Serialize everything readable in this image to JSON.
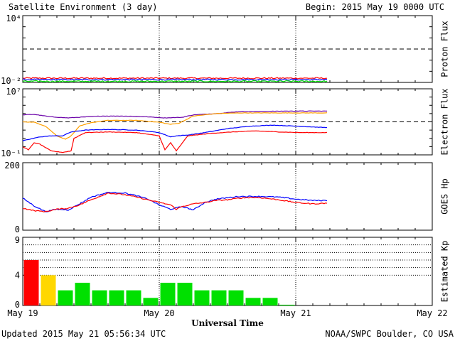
{
  "header": {
    "title": "Satellite Environment (3 day)",
    "begin": "Begin:  2015 May 19 0000 UTC"
  },
  "footer": {
    "updated": "Updated 2015 May 21 05:56:34 UTC",
    "credit": "NOAA/SWPC Boulder, CO USA"
  },
  "chart_data": [
    {
      "type": "line",
      "name": "proton-flux",
      "ylabel": "Proton Flux",
      "yscale": "log",
      "ylim": [
        0.01,
        10000
      ],
      "y_tick_labels": [
        "10⁴",
        "10⁻²"
      ],
      "threshold": 10,
      "colors": [
        "#ff0000",
        "#0000ff",
        "#00e000"
      ],
      "series": [
        {
          "color": "#ff0000",
          "x_hours": [
            0,
            53.5
          ],
          "y": [
            0.024,
            0.024
          ]
        },
        {
          "color": "#0000ff",
          "x_hours": [
            0,
            53.5
          ],
          "y": [
            0.018,
            0.018
          ]
        },
        {
          "color": "#00e000",
          "x_hours": [
            0,
            53.5
          ],
          "y": [
            0.0125,
            0.0125
          ]
        }
      ]
    },
    {
      "type": "line",
      "name": "electron-flux",
      "ylabel": "Electron Flux",
      "yscale": "log",
      "ylim": [
        0.1,
        10000000
      ],
      "y_tick_labels": [
        "10⁷",
        "10⁻¹"
      ],
      "threshold": 1000,
      "colors": [
        "#6a00a8",
        "#ffa000",
        "#0000ff",
        "#ff0000"
      ],
      "series": [
        {
          "color": "#6a00a8",
          "x_hours": [
            0,
            2,
            5,
            8,
            11,
            14,
            18,
            22,
            25,
            28,
            30,
            34,
            38,
            42,
            46,
            50,
            53.5
          ],
          "y": [
            7000,
            8000,
            4000,
            3000,
            4000,
            5000,
            5000,
            4000,
            3000,
            3500,
            7000,
            10000,
            17000,
            18000,
            20000,
            20000,
            20000
          ]
        },
        {
          "color": "#ffa000",
          "x_hours": [
            0,
            2,
            4,
            6,
            7.5,
            8.5,
            10,
            12,
            15,
            20,
            24,
            26,
            27.5,
            30,
            34,
            38,
            42,
            46,
            50,
            53.5
          ],
          "y": [
            1000,
            900,
            300,
            20,
            8,
            20,
            300,
            800,
            1500,
            1500,
            900,
            500,
            700,
            5000,
            10000,
            12000,
            12000,
            12000,
            12000,
            12000
          ]
        },
        {
          "color": "#0000ff",
          "x_hours": [
            0,
            3,
            5,
            7,
            8.5,
            11,
            15,
            20,
            24,
            26,
            27,
            29,
            32,
            36,
            40,
            44,
            48,
            53.5
          ],
          "y": [
            5,
            15,
            20,
            20,
            60,
            100,
            120,
            100,
            50,
            15,
            20,
            25,
            50,
            150,
            300,
            400,
            300,
            200
          ]
        },
        {
          "color": "#ff0000",
          "x_hours": [
            0,
            1,
            2,
            3,
            5,
            7,
            8.5,
            9,
            11,
            15,
            20,
            24,
            25,
            26,
            27,
            29,
            33,
            37,
            41,
            45,
            49,
            53.5
          ],
          "y": [
            1,
            0.4,
            3,
            2,
            0.3,
            0.2,
            0.3,
            10,
            50,
            60,
            50,
            20,
            0.4,
            3,
            0.3,
            20,
            40,
            60,
            80,
            60,
            50,
            50
          ]
        }
      ]
    },
    {
      "type": "line",
      "name": "goes-hp",
      "ylabel": "GOES Hp",
      "ylim": [
        0,
        200
      ],
      "y_ticks": [
        0,
        200
      ],
      "colors": [
        "#0000ff",
        "#ff0000"
      ],
      "series": [
        {
          "color": "#0000ff",
          "x_hours": [
            0,
            2,
            4,
            6,
            8,
            10,
            12,
            15,
            18,
            20,
            22,
            24,
            26,
            28,
            30,
            32,
            34,
            36,
            38,
            40,
            42,
            45,
            48,
            51,
            53.5
          ],
          "y": [
            95,
            72,
            55,
            62,
            60,
            78,
            98,
            112,
            110,
            102,
            92,
            75,
            62,
            70,
            60,
            82,
            92,
            96,
            100,
            100,
            100,
            98,
            92,
            88,
            88
          ]
        },
        {
          "color": "#ff0000",
          "x_hours": [
            0,
            2,
            4,
            6,
            8,
            10,
            12,
            15,
            18,
            20,
            22,
            24,
            26,
            27,
            28,
            30,
            32,
            34,
            36,
            38,
            40,
            42,
            45,
            48,
            51,
            53.5
          ],
          "y": [
            65,
            58,
            55,
            62,
            65,
            75,
            90,
            110,
            105,
            98,
            90,
            82,
            75,
            62,
            70,
            78,
            82,
            88,
            90,
            95,
            97,
            96,
            90,
            82,
            78,
            80
          ]
        }
      ]
    },
    {
      "type": "bar",
      "name": "estimated-kp",
      "ylabel": "Estimated Kp",
      "ylim": [
        0,
        9
      ],
      "y_ticks": [
        0,
        4,
        9
      ],
      "bar_width_hours": 3,
      "x_hours": [
        0,
        3,
        6,
        9,
        12,
        15,
        18,
        21,
        24,
        27,
        30,
        33,
        36,
        39,
        42,
        45
      ],
      "values": [
        6,
        4,
        2,
        3,
        2,
        2,
        2,
        1,
        3,
        3,
        2,
        2,
        2,
        1,
        1,
        0.1
      ],
      "colors": [
        "#ff0000",
        "#ffd700",
        "#00e000",
        "#00e000",
        "#00e000",
        "#00e000",
        "#00e000",
        "#00e000",
        "#00e000",
        "#00e000",
        "#00e000",
        "#00e000",
        "#00e000",
        "#00e000",
        "#00e000",
        "#00e000"
      ]
    }
  ],
  "x_axis": {
    "xlabel": "Universal Time",
    "range_hours": [
      0,
      72
    ],
    "day_labels": [
      "May 19",
      "May 20",
      "May 21",
      "May 22"
    ],
    "day_hours": [
      0,
      24,
      48,
      72
    ]
  }
}
